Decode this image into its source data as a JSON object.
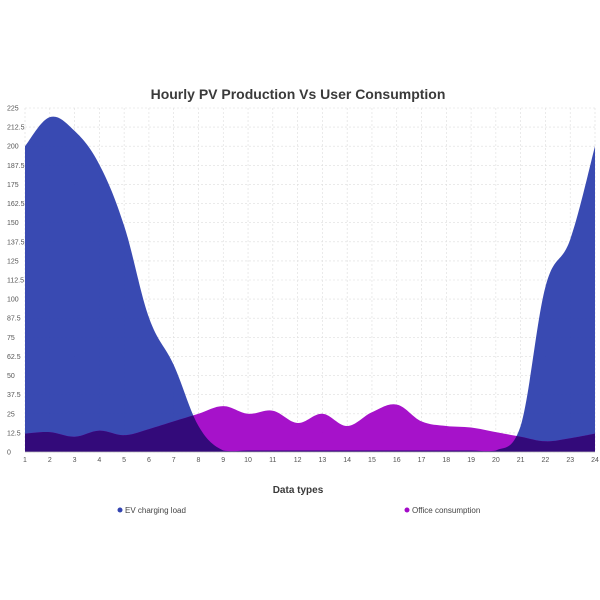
{
  "chart_data": {
    "type": "area",
    "title": "Hourly PV Production Vs User Consumption",
    "xlabel": "Data types",
    "ylabel": "",
    "x": [
      1,
      2,
      3,
      4,
      5,
      6,
      7,
      8,
      9,
      10,
      11,
      12,
      13,
      14,
      15,
      16,
      17,
      18,
      19,
      20,
      21,
      22,
      23,
      24
    ],
    "ylim": [
      0,
      225
    ],
    "yticks": [
      0,
      12.5,
      25,
      37.5,
      50,
      62.5,
      75,
      87.5,
      100,
      112.5,
      125,
      137.5,
      150,
      162.5,
      175,
      187.5,
      200,
      212.5,
      225
    ],
    "ytick_labels": [
      "0",
      "12.5",
      "25",
      "37.5",
      "50",
      "62.5",
      "75",
      "87.5",
      "100",
      "112.5",
      "125",
      "137.5",
      "150",
      "162.5",
      "175",
      "187.5",
      "200",
      "212.5",
      "225"
    ],
    "xtick_labels": [
      "1",
      "2",
      "3",
      "4",
      "5",
      "6",
      "7",
      "8",
      "9",
      "10",
      "11",
      "12",
      "13",
      "14",
      "15",
      "16",
      "17",
      "18",
      "19",
      "20",
      "21",
      "22",
      "23",
      "24"
    ],
    "grid": true,
    "legend": "bottom",
    "series": [
      {
        "name": "EV charging load",
        "color": "#3344b0",
        "values": [
          200,
          219,
          210,
          188,
          148,
          88,
          57,
          17,
          1,
          1,
          1,
          1,
          1,
          1,
          1,
          1,
          1,
          1,
          1,
          1,
          17,
          108,
          139,
          200
        ]
      },
      {
        "name": "Office consumption",
        "color": "#a30ac8",
        "values": [
          12,
          13,
          10,
          14,
          11,
          15,
          20,
          25,
          30,
          25,
          27,
          19,
          25,
          17,
          26,
          31,
          20,
          17,
          16,
          13,
          10,
          7,
          9,
          12
        ]
      }
    ],
    "overlap_color": "#330a7a"
  }
}
